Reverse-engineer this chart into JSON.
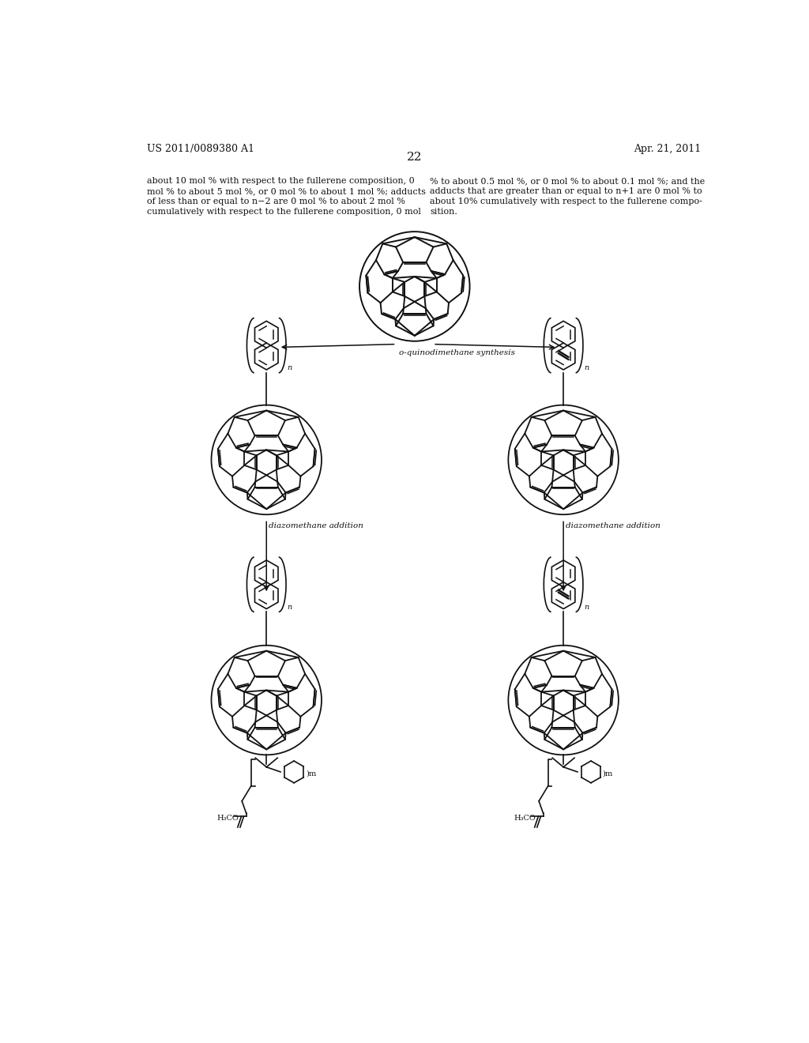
{
  "background_color": "#ffffff",
  "header_left": "US 2011/0089380 A1",
  "header_right": "Apr. 21, 2011",
  "page_number": "22",
  "text_left": "about 10 mol % with respect to the fullerene composition, 0\nmol % to about 5 mol %, or 0 mol % to about 1 mol %; adducts\nof less than or equal to n−2 are 0 mol % to about 2 mol %\ncumulatively with respect to the fullerene composition, 0 mol",
  "text_right": "% to about 0.5 mol %, or 0 mol % to about 0.1 mol %; and the\nadducts that are greater than or equal to n+1 are 0 mol % to\nabout 10% cumulatively with respect to the fullerene compo-\nsition.",
  "arrow_label": "o-quinodimethane synthesis",
  "arrow_label2_left": "diazomethane addition",
  "arrow_label2_right": "diazomethane addition",
  "line_color": "#111111",
  "text_color": "#111111",
  "font_size_header": 9,
  "font_size_body": 8,
  "font_size_label": 7.5
}
